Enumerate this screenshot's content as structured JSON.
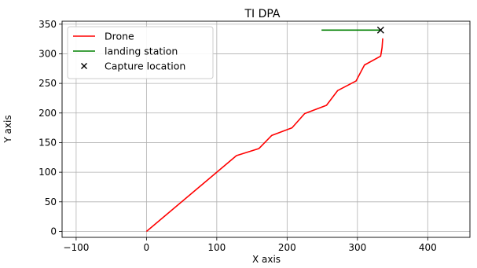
{
  "chart_data": {
    "type": "line",
    "title": "TI DPA",
    "xlabel": "X axis",
    "ylabel": "Y axis",
    "xlim": [
      -120,
      460
    ],
    "ylim": [
      -10,
      355
    ],
    "xticks": [
      -100,
      0,
      100,
      200,
      300,
      400
    ],
    "yticks": [
      0,
      50,
      100,
      150,
      200,
      250,
      300,
      350
    ],
    "xtick_labels": [
      "−100",
      "0",
      "100",
      "200",
      "300",
      "400"
    ],
    "ytick_labels": [
      "0",
      "50",
      "100",
      "150",
      "200",
      "250",
      "300",
      "350"
    ],
    "grid": true,
    "legend_position": "top-left",
    "series": [
      {
        "name": "Drone",
        "kind": "line",
        "color": "#ff0000",
        "x": [
          0,
          128,
          160,
          178,
          207,
          225,
          256,
          272,
          298,
          310,
          333,
          335,
          336
        ],
        "y": [
          0,
          128,
          140,
          162,
          175,
          199,
          213,
          238,
          254,
          281,
          296,
          310,
          326
        ]
      },
      {
        "name": "landing station",
        "kind": "line",
        "color": "#008000",
        "x": [
          249,
          333
        ],
        "y": [
          340,
          340
        ]
      },
      {
        "name": "Capture location",
        "kind": "marker",
        "marker": "x",
        "color": "#000000",
        "x": [
          333
        ],
        "y": [
          340
        ]
      }
    ]
  }
}
